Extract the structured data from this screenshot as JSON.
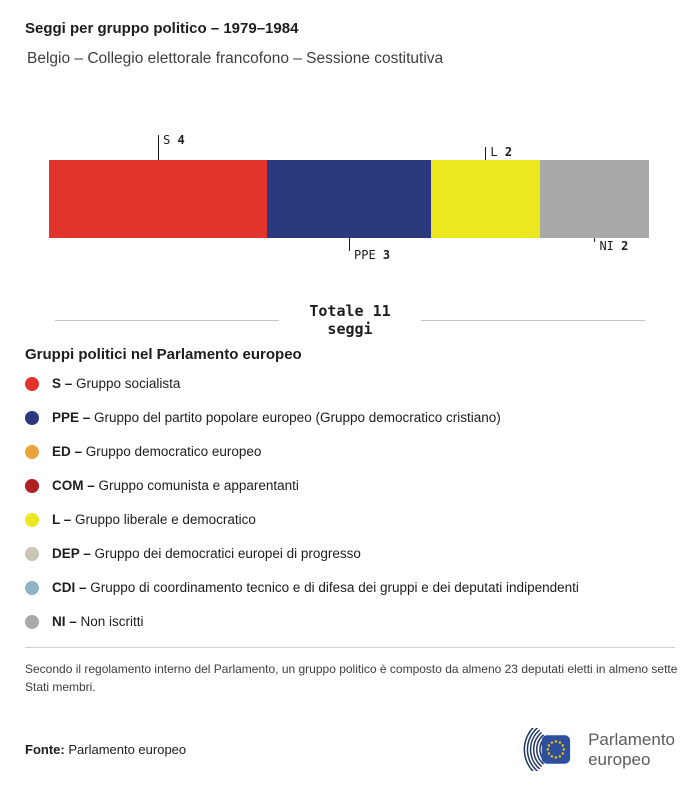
{
  "header": {
    "title": "Seggi per gruppo politico – 1979–1984",
    "subtitle": "Belgio – Collegio elettorale francofono – Sessione costitutiva"
  },
  "chart_data": {
    "type": "bar",
    "orientation": "horizontal-stacked",
    "title": "Seggi per gruppo politico – 1979–1984",
    "subtitle": "Belgio – Collegio elettorale francofono – Sessione costitutiva",
    "total": 11,
    "total_label": "Totale 11",
    "total_sublabel": "seggi",
    "categories": [
      "S",
      "PPE",
      "L",
      "NI"
    ],
    "values": [
      4,
      3,
      2,
      2
    ],
    "segments": [
      {
        "group": "S",
        "seats": 4,
        "color": "#e1342c",
        "callout": "above",
        "line_len": 25
      },
      {
        "group": "PPE",
        "seats": 3,
        "color": "#2b3a7e",
        "callout": "below",
        "line_len": 13
      },
      {
        "group": "L",
        "seats": 2,
        "color": "#ece71f",
        "callout": "above",
        "line_len": 13
      },
      {
        "group": "NI",
        "seats": 2,
        "color": "#a9a9a9",
        "callout": "below",
        "line_len": 4
      }
    ]
  },
  "legend": {
    "title": "Gruppi politici nel Parlamento europeo",
    "items": [
      {
        "abbr": "S –",
        "label": "Gruppo socialista",
        "color": "#e1342c"
      },
      {
        "abbr": "PPE –",
        "label": "Gruppo del partito popolare europeo (Gruppo democratico cristiano)",
        "color": "#2b3a7e"
      },
      {
        "abbr": "ED –",
        "label": "Gruppo democratico europeo",
        "color": "#eaa43c"
      },
      {
        "abbr": "COM –",
        "label": "Gruppo comunista e apparentanti",
        "color": "#b01f24"
      },
      {
        "abbr": "L –",
        "label": "Gruppo liberale e democratico",
        "color": "#ece71f"
      },
      {
        "abbr": "DEP –",
        "label": "Gruppo dei democratici europei di progresso",
        "color": "#cbc5b6"
      },
      {
        "abbr": "CDI –",
        "label": "Gruppo di coordinamento tecnico e di difesa dei gruppi e dei deputati indipendenti",
        "color": "#8eb2c6"
      },
      {
        "abbr": "NI –",
        "label": "Non iscritti",
        "color": "#a9a9a9"
      }
    ]
  },
  "footnote": "Secondo il regolamento interno del Parlamento, un gruppo politico è composto da almeno 23 deputati eletti in almeno sette Stati membri.",
  "source": {
    "label": "Fonte:",
    "value": "Parlamento europeo"
  },
  "logo": {
    "line1": "Parlamento",
    "line2": "europeo"
  }
}
